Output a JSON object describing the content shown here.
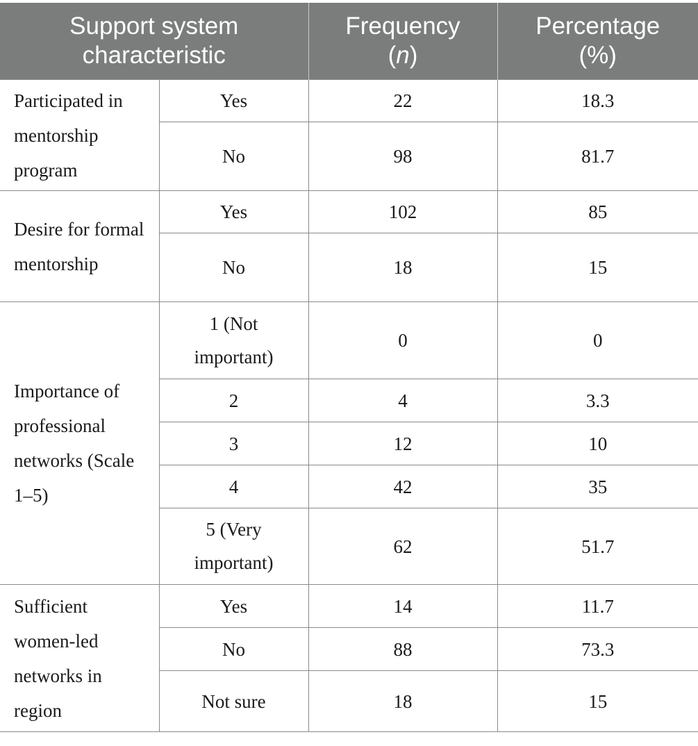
{
  "header": {
    "col1_line1": "Support system",
    "col1_line2": "characteristic",
    "col2_line1": "Frequency",
    "col2_n": "n",
    "col3_line1": "Percentage",
    "col3_line2": "(%)"
  },
  "groups": [
    {
      "label": "Participated in mentorship program",
      "rows": [
        {
          "response": "Yes",
          "frequency": "22",
          "percentage": "18.3"
        },
        {
          "response": "No",
          "frequency": "98",
          "percentage": "81.7"
        }
      ]
    },
    {
      "label": "Desire for formal mentorship",
      "rows": [
        {
          "response": "Yes",
          "frequency": "102",
          "percentage": "85"
        },
        {
          "response": "No",
          "frequency": "18",
          "percentage": "15"
        }
      ]
    },
    {
      "label": "Importance of professional networks (Scale 1–5)",
      "rows": [
        {
          "response": "1 (Not important)",
          "frequency": "0",
          "percentage": "0"
        },
        {
          "response": "2",
          "frequency": "4",
          "percentage": "3.3"
        },
        {
          "response": "3",
          "frequency": "12",
          "percentage": "10"
        },
        {
          "response": "4",
          "frequency": "42",
          "percentage": "35"
        },
        {
          "response": "5 (Very important)",
          "frequency": "62",
          "percentage": "51.7"
        }
      ]
    },
    {
      "label": "Sufficient women-led networks in region",
      "rows": [
        {
          "response": "Yes",
          "frequency": "14",
          "percentage": "11.7"
        },
        {
          "response": "No",
          "frequency": "88",
          "percentage": "73.3"
        },
        {
          "response": "Not sure",
          "frequency": "18",
          "percentage": "15"
        }
      ]
    }
  ]
}
